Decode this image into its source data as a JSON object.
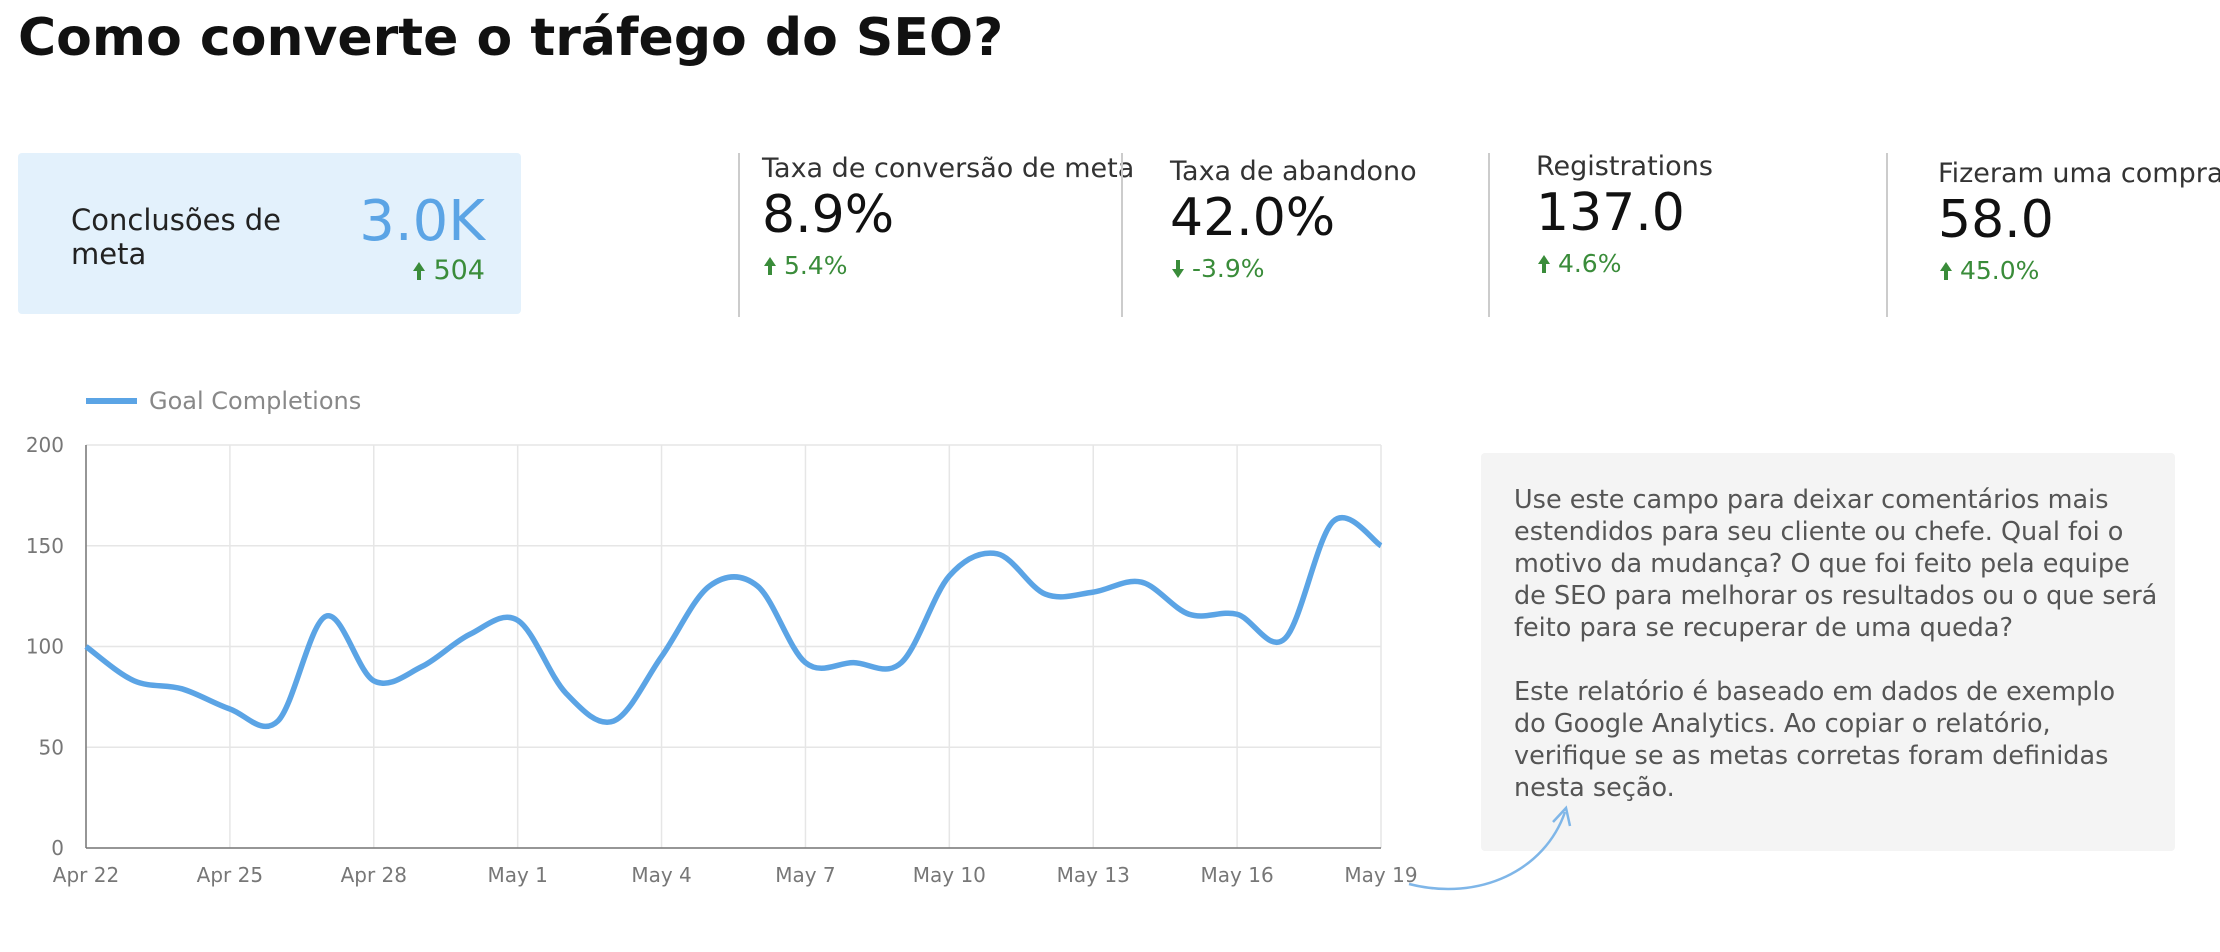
{
  "header": {
    "title": "Como converte o tráfego do SEO?"
  },
  "scorecards": [
    {
      "label": "Conclusões de meta",
      "value": "3.0K",
      "delta": "504"
    },
    {
      "label": "Taxa de conversão de meta",
      "value": "8.9%",
      "delta": "5.4%"
    },
    {
      "label": "Taxa de abandono",
      "value": "42.0%",
      "delta": "-3.9%"
    },
    {
      "label": "Registrations",
      "value": "137.0",
      "delta": "4.6%"
    },
    {
      "label": "Fizeram uma compra",
      "value": "58.0",
      "delta": "45.0%"
    }
  ],
  "chart_data": {
    "type": "line",
    "categories": [
      "Apr 22",
      null,
      null,
      "Apr 25",
      null,
      null,
      "Apr 28",
      null,
      null,
      "May 1",
      null,
      null,
      "May 4",
      null,
      null,
      "May 7",
      null,
      null,
      "May 10",
      null,
      null,
      "May 13",
      null,
      null,
      "May 16",
      null,
      null,
      "May 19"
    ],
    "series": [
      {
        "name": "Goal Completions",
        "color": "#5ba4e5",
        "values": [
          100,
          83,
          79,
          69,
          63,
          115,
          83,
          90,
          106,
          113,
          77,
          63,
          95,
          130,
          130,
          92,
          92,
          92,
          135,
          146,
          126,
          127,
          132,
          116,
          116,
          104,
          162,
          150
        ]
      }
    ],
    "ylim": [
      0,
      200
    ],
    "yticks": [
      0,
      50,
      100,
      150,
      200
    ],
    "grid": true
  },
  "comment": {
    "paragraphs": [
      [
        "Use este campo para deixar comentários mais",
        "estendidos para seu cliente ou chefe. Qual foi o",
        "motivo da mudança? O que foi feito pela equipe",
        "de SEO para melhorar os resultados ou o que será",
        "feito para se recuperar de uma queda?"
      ],
      [
        "Este relatório é baseado em dados de exemplo",
        "do Google Analytics. Ao copiar o relatório,",
        "verifique se as metas corretas foram definidas",
        "nesta seção."
      ]
    ]
  }
}
